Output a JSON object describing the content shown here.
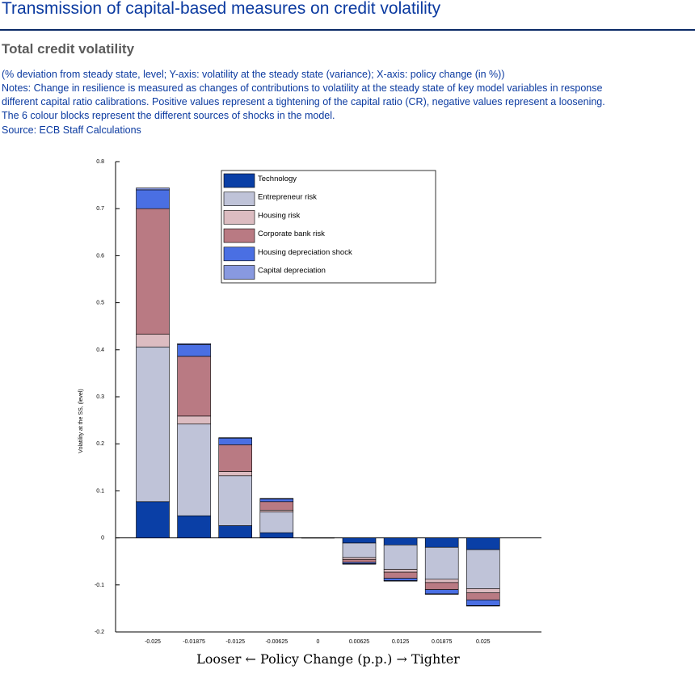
{
  "page": {
    "title": "Transmission of capital-based measures on credit volatility",
    "subtitle": "Total credit volatility",
    "description": "(% deviation from steady state, level; Y-axis: volatility at the steady state (variance); X-axis: policy change (in %))",
    "notes_line1": "Notes: Change in resilience is measured as changes of contributions to volatility at the steady state of key model variables in response",
    "notes_line2": "different capital ratio calibrations. Positive values represent a tightening of the capital ratio (CR), negative values represent a loosening.",
    "notes_line3": "The 6 colour blocks represent the different sources of shocks in the model.",
    "source": "Source: ECB Staff Calculations"
  },
  "chart_data": {
    "type": "bar",
    "stacked": true,
    "categories": [
      "-0.025",
      "-0.01875",
      "-0.0125",
      "-0.00625",
      "0",
      "0.00625",
      "0.0125",
      "0.01875",
      "0.025"
    ],
    "xlabel": "Looser ← Policy Change (p.p.) → Tighter",
    "ylabel": "Volatility at the SS, (level)",
    "ylim": [
      -0.2,
      0.8
    ],
    "yticks": [
      -0.2,
      -0.1,
      0,
      0.1,
      0.2,
      0.3,
      0.4,
      0.5,
      0.6,
      0.7,
      0.8
    ],
    "ytick_labels": [
      "-0.2",
      "-0.1",
      "0",
      "0.1",
      "0.2",
      "0.3",
      "0.4",
      "0.5",
      "0.6",
      "0.7",
      "0.8"
    ],
    "legend_position": "top-center",
    "series": [
      {
        "name": "Technology",
        "color": "#0a3fa6",
        "values": [
          0.077,
          0.047,
          0.026,
          0.011,
          0.0,
          -0.011,
          -0.015,
          -0.02,
          -0.025
        ]
      },
      {
        "name": "Entrepreneur risk",
        "color": "#bfc3d8",
        "values": [
          0.329,
          0.195,
          0.106,
          0.044,
          0.0,
          -0.031,
          -0.052,
          -0.068,
          -0.083
        ]
      },
      {
        "name": "Housing risk",
        "color": "#dcbcc1",
        "values": [
          0.027,
          0.017,
          0.009,
          0.004,
          0.0,
          -0.004,
          -0.006,
          -0.007,
          -0.009
        ]
      },
      {
        "name": "Corporate bank risk",
        "color": "#b97a83",
        "values": [
          0.267,
          0.127,
          0.057,
          0.018,
          0.0,
          -0.006,
          -0.013,
          -0.015,
          -0.015
        ]
      },
      {
        "name": "Housing depreciation shock",
        "color": "#4a6fe3",
        "values": [
          0.04,
          0.025,
          0.014,
          0.006,
          0.0,
          -0.003,
          -0.005,
          -0.009,
          -0.012
        ]
      },
      {
        "name": "Capital depreciation",
        "color": "#8899e0",
        "values": [
          0.004,
          0.002,
          0.001,
          0.001,
          0.0,
          -0.001,
          -0.001,
          -0.001,
          -0.001
        ]
      }
    ]
  }
}
